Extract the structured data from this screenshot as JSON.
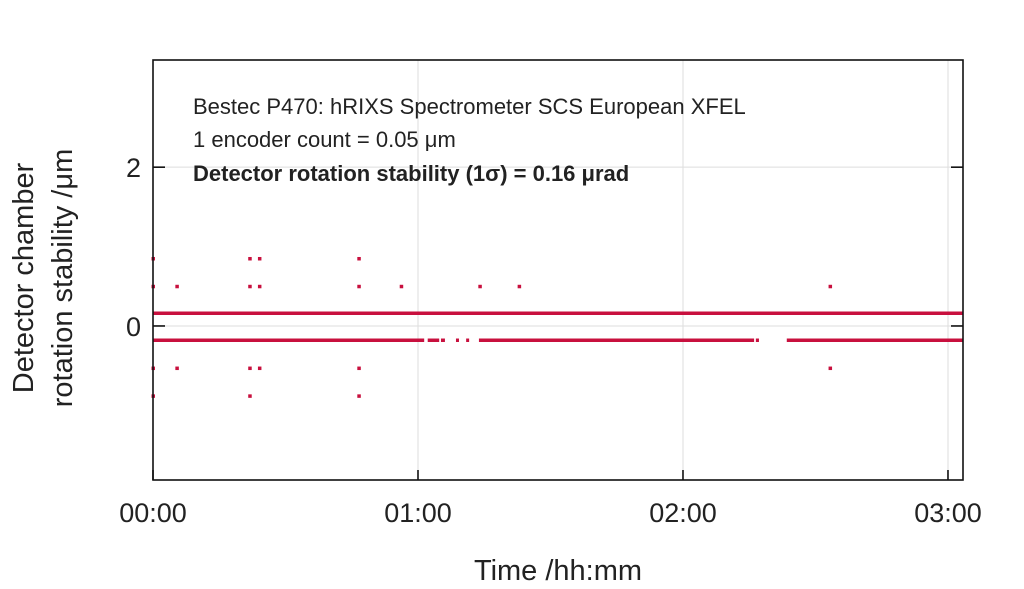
{
  "chart_data": {
    "type": "scatter",
    "title": "",
    "xlabel": "Time /hh:mm",
    "ylabel_lines": [
      "Detector chamber",
      "rotation stability /μm"
    ],
    "xlim_minutes": [
      0,
      183.4
    ],
    "ylim": [
      -1.94,
      3.35
    ],
    "x_ticks": [
      {
        "value": 0,
        "label": "00:00"
      },
      {
        "value": 60,
        "label": "01:00"
      },
      {
        "value": 120,
        "label": "02:00"
      },
      {
        "value": 180,
        "label": "03:00"
      }
    ],
    "y_ticks": [
      {
        "value": 0,
        "label": "0"
      },
      {
        "value": 2,
        "label": "2"
      }
    ],
    "grid": true,
    "annotations": [
      "Bestec P470: hRIXS Spectrometer SCS European XFEL",
      "1 encoder count = 0.05 μm",
      "Detector rotation stability (1σ) = 0.16 μrad"
    ],
    "series_color": "#c8103e",
    "dense_levels": [
      {
        "y": 0.16,
        "segments": [
          [
            0,
            183.4
          ]
        ]
      },
      {
        "y": -0.18,
        "segments": [
          [
            0,
            61.4
          ],
          [
            62.2,
            64.8
          ],
          [
            65.2,
            66.1
          ],
          [
            68.6,
            69.0
          ],
          [
            70.9,
            71.3
          ],
          [
            73.8,
            136.1
          ],
          [
            136.5,
            137.2
          ],
          [
            143.5,
            183.4
          ]
        ]
      }
    ],
    "points": [
      [
        0,
        0.85
      ],
      [
        0,
        0.5
      ],
      [
        0,
        -0.53
      ],
      [
        0,
        -0.88
      ],
      [
        5.4,
        0.5
      ],
      [
        5.4,
        -0.53
      ],
      [
        21.9,
        0.85
      ],
      [
        21.9,
        0.5
      ],
      [
        21.9,
        -0.53
      ],
      [
        21.9,
        -0.88
      ],
      [
        24.1,
        0.85
      ],
      [
        24.1,
        0.5
      ],
      [
        24.1,
        -0.53
      ],
      [
        46.6,
        0.85
      ],
      [
        46.6,
        0.5
      ],
      [
        46.6,
        -0.53
      ],
      [
        46.6,
        -0.88
      ],
      [
        56.2,
        0.5
      ],
      [
        74.0,
        0.5
      ],
      [
        82.9,
        0.5
      ],
      [
        153.3,
        0.5
      ],
      [
        153.3,
        -0.53
      ]
    ]
  }
}
